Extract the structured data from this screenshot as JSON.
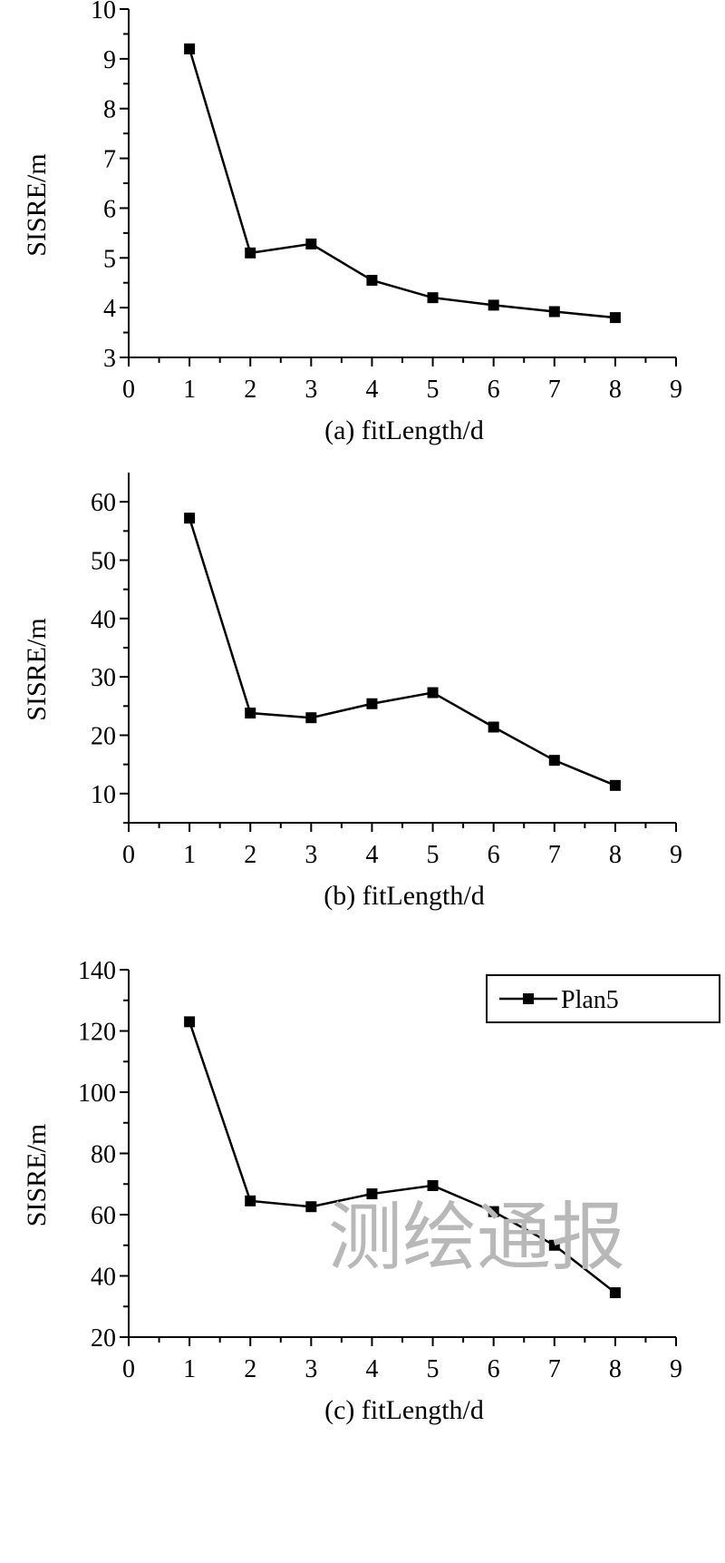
{
  "watermark": "测绘通报",
  "chart_data": [
    {
      "type": "line",
      "x": [
        1,
        2,
        3,
        4,
        5,
        6,
        7,
        8
      ],
      "series": [
        {
          "values": [
            9.2,
            5.1,
            5.28,
            4.55,
            4.2,
            4.05,
            3.92,
            3.8
          ]
        }
      ],
      "xlabel": "(a) fitLength/d",
      "ylabel": "SISRE/m",
      "xlim": [
        0,
        9
      ],
      "ylim": [
        3,
        10
      ],
      "xticks": [
        0,
        1,
        2,
        3,
        4,
        5,
        6,
        7,
        8,
        9
      ],
      "yticks": [
        3,
        4,
        5,
        6,
        7,
        8,
        9,
        10
      ],
      "grid": false
    },
    {
      "type": "line",
      "x": [
        1,
        2,
        3,
        4,
        5,
        6,
        7,
        8
      ],
      "series": [
        {
          "values": [
            57.2,
            23.8,
            23,
            25.4,
            27.3,
            21.4,
            15.7,
            11.4
          ]
        }
      ],
      "xlabel": "(b) fitLength/d",
      "ylabel": "SISRE/m",
      "xlim": [
        0,
        9
      ],
      "ylim": [
        5,
        65
      ],
      "xticks": [
        0,
        1,
        2,
        3,
        4,
        5,
        6,
        7,
        8,
        9
      ],
      "yticks": [
        10,
        20,
        30,
        40,
        50,
        60
      ],
      "grid": false
    },
    {
      "type": "line",
      "x": [
        1,
        2,
        3,
        4,
        5,
        6,
        7,
        8
      ],
      "series": [
        {
          "name": "Plan5",
          "values": [
            123,
            64.5,
            62.6,
            66.8,
            69.5,
            61,
            50,
            34.5
          ]
        }
      ],
      "xlabel": "(c) fitLength/d",
      "ylabel": "SISRE/m",
      "xlim": [
        0,
        9
      ],
      "ylim": [
        20,
        140
      ],
      "xticks": [
        0,
        1,
        2,
        3,
        4,
        5,
        6,
        7,
        8,
        9
      ],
      "yticks": [
        20,
        40,
        60,
        80,
        100,
        120,
        140
      ],
      "grid": false,
      "legend": "top-right"
    }
  ]
}
